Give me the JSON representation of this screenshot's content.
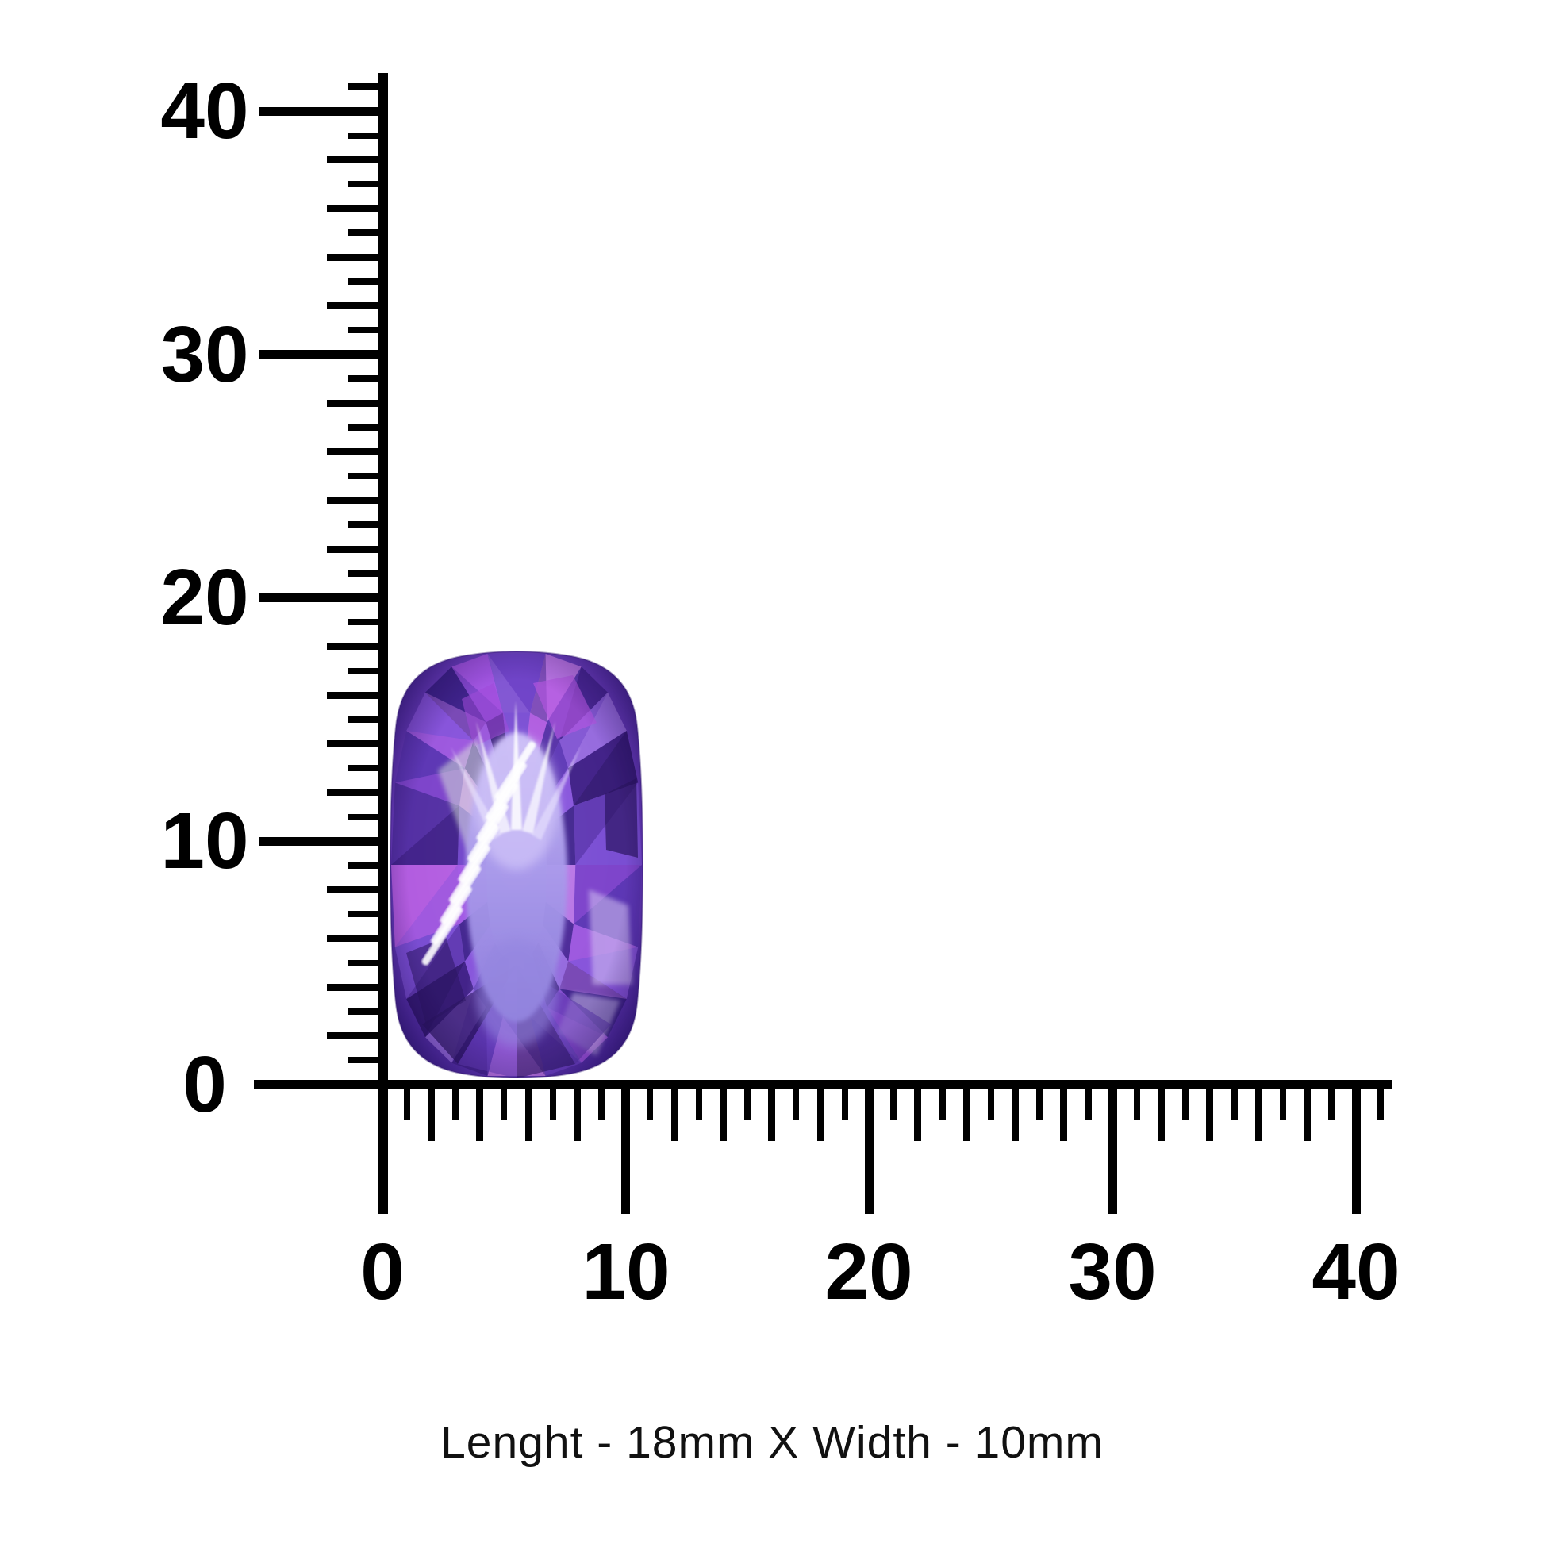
{
  "page": {
    "background": "#ffffff",
    "ink": "#000000"
  },
  "caption": {
    "text": "Lenght - 18mm X Width - 10mm"
  },
  "gem": {
    "description": "cushion-cut purple amethyst gemstone",
    "length_mm": 18,
    "width_mm": 10,
    "colors": {
      "base_light": "#b7a9f0",
      "base_mid": "#9071dc",
      "base_deep": "#6a3cbe",
      "base_edge": "#45249a",
      "table_top": "#cabdf6",
      "table_mid": "#ab9cec",
      "table_bottom": "#9182dd",
      "highlight": "#ffffff",
      "dark_indigo": "#2c1663",
      "magenta": "#b456e0"
    },
    "facet_palette": [
      "#5b35b2",
      "#8a55dd",
      "#3a1f85",
      "#a757e6",
      "#6f42c8",
      "#c27ae8",
      "#45248f",
      "#9a6fe0",
      "#31176e",
      "#7b4fd4",
      "#b95fe2",
      "#512da0"
    ]
  },
  "rulers": {
    "unit": "mm",
    "major_step": "10",
    "vertical": {
      "labels": [
        "40",
        "30",
        "20",
        "10",
        "0"
      ]
    },
    "horizontal": {
      "labels": [
        "0",
        "10",
        "20",
        "30",
        "40"
      ]
    }
  }
}
